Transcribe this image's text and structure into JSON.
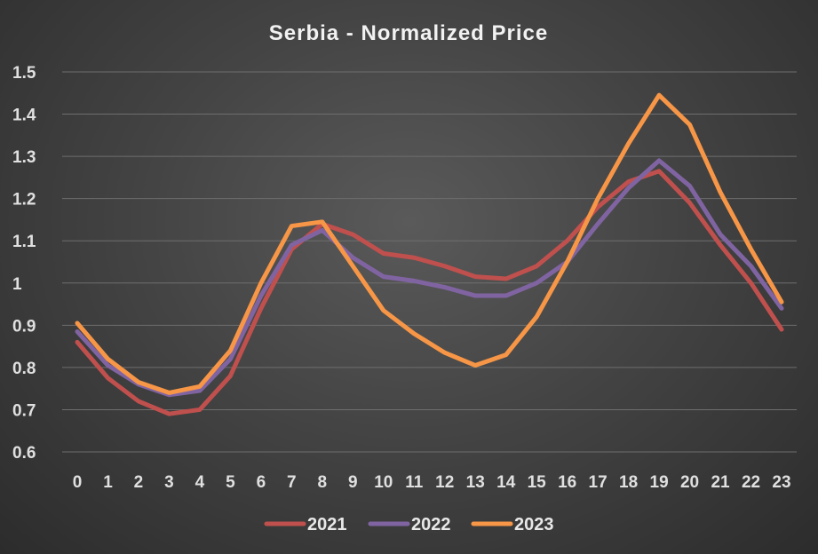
{
  "chart_data": {
    "type": "line",
    "title": "Serbia - Normalized Price",
    "xlabel": "",
    "ylabel": "",
    "categories": [
      "0",
      "1",
      "2",
      "3",
      "4",
      "5",
      "6",
      "7",
      "8",
      "9",
      "10",
      "11",
      "12",
      "13",
      "14",
      "15",
      "16",
      "17",
      "18",
      "19",
      "20",
      "21",
      "22",
      "23"
    ],
    "y_ticks": [
      "1.5",
      "1.4",
      "1.3",
      "1.2",
      "1.1",
      "1",
      "0.9",
      "0.8",
      "0.7",
      "0.6"
    ],
    "ylim": [
      0.6,
      1.5
    ],
    "grid": true,
    "legend_position": "bottom",
    "series": [
      {
        "name": "2021",
        "color": "#c0504d",
        "values": [
          0.86,
          0.775,
          0.72,
          0.69,
          0.7,
          0.78,
          0.94,
          1.08,
          1.14,
          1.115,
          1.07,
          1.06,
          1.04,
          1.015,
          1.01,
          1.04,
          1.1,
          1.18,
          1.24,
          1.265,
          1.19,
          1.09,
          1.0,
          0.89
        ]
      },
      {
        "name": "2022",
        "color": "#8064a2",
        "values": [
          0.885,
          0.805,
          0.76,
          0.735,
          0.745,
          0.82,
          0.97,
          1.09,
          1.125,
          1.06,
          1.015,
          1.005,
          0.99,
          0.97,
          0.97,
          1.0,
          1.05,
          1.14,
          1.225,
          1.29,
          1.23,
          1.115,
          1.04,
          0.94
        ]
      },
      {
        "name": "2023",
        "color": "#f79646",
        "values": [
          0.905,
          0.82,
          0.765,
          0.74,
          0.755,
          0.84,
          1.0,
          1.135,
          1.145,
          1.04,
          0.935,
          0.88,
          0.835,
          0.805,
          0.83,
          0.92,
          1.05,
          1.2,
          1.33,
          1.445,
          1.375,
          1.215,
          1.08,
          0.955
        ]
      }
    ]
  }
}
